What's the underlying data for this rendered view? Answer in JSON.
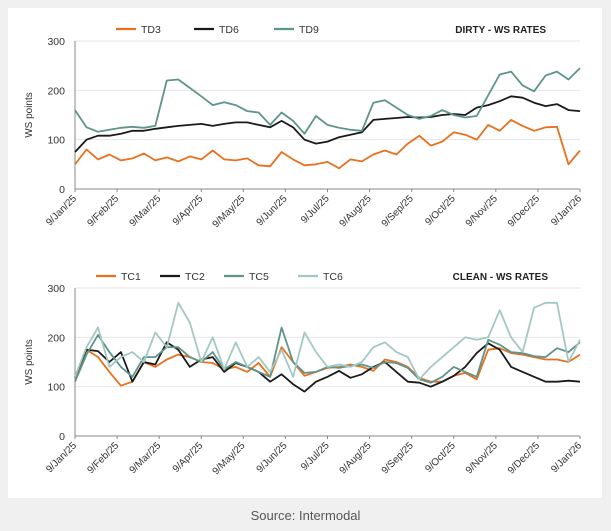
{
  "source": "Source: Intermodal",
  "chart_data": [
    {
      "type": "line",
      "title": "DIRTY - WS RATES",
      "ylabel": "WS points",
      "xlabel": "",
      "ylim": [
        0,
        300
      ],
      "yticks": [
        0,
        100,
        200,
        300
      ],
      "grid": true,
      "legend": "top-left",
      "xticks": [
        "9/Jan/25",
        "9/Feb/25",
        "9/Mar/25",
        "9/Apr/25",
        "9/May/25",
        "9/Jun/25",
        "9/Jul/25",
        "9/Aug/25",
        "9/Sep/25",
        "9/Oct/25",
        "9/Nov/25",
        "9/Dec/25",
        "9/Jan/26"
      ],
      "series": [
        {
          "name": "TD3",
          "color": "#E8701F",
          "values": [
            50,
            80,
            60,
            70,
            58,
            62,
            72,
            58,
            64,
            56,
            66,
            60,
            78,
            60,
            58,
            62,
            48,
            46,
            75,
            60,
            48,
            50,
            55,
            42,
            60,
            56,
            70,
            78,
            70,
            92,
            108,
            88,
            96,
            115,
            110,
            100,
            130,
            118,
            140,
            128,
            118,
            125,
            126,
            50,
            78
          ]
        },
        {
          "name": "TD6",
          "color": "#1A1A1A",
          "values": [
            75,
            100,
            108,
            108,
            112,
            118,
            118,
            122,
            125,
            128,
            130,
            132,
            128,
            132,
            135,
            135,
            130,
            125,
            138,
            125,
            100,
            92,
            96,
            105,
            110,
            115,
            140,
            142,
            144,
            146,
            145,
            146,
            150,
            152,
            150,
            165,
            170,
            178,
            188,
            185,
            175,
            168,
            172,
            160,
            158
          ]
        },
        {
          "name": "TD9",
          "color": "#5E948C",
          "values": [
            160,
            125,
            116,
            120,
            124,
            126,
            124,
            128,
            220,
            222,
            205,
            188,
            170,
            176,
            170,
            158,
            155,
            130,
            155,
            138,
            112,
            148,
            130,
            124,
            120,
            118,
            175,
            180,
            165,
            150,
            142,
            148,
            160,
            150,
            145,
            148,
            190,
            232,
            238,
            210,
            198,
            230,
            238,
            222,
            245
          ]
        }
      ]
    },
    {
      "type": "line",
      "title": "CLEAN - WS RATES",
      "ylabel": "WS points",
      "xlabel": "",
      "ylim": [
        0,
        300
      ],
      "yticks": [
        0,
        100,
        200,
        300
      ],
      "grid": true,
      "legend": "top-left",
      "xticks": [
        "9/Jan/25",
        "9/Feb/25",
        "9/Mar/25",
        "9/Apr/25",
        "9/May/25",
        "9/Jun/25",
        "9/Jul/25",
        "9/Aug/25",
        "9/Sep/25",
        "9/Oct/25",
        "9/Nov/25",
        "9/Dec/25",
        "9/Jan/26"
      ],
      "series": [
        {
          "name": "TC1",
          "color": "#E8701F",
          "values": [
            118,
            175,
            160,
            130,
            102,
            110,
            150,
            140,
            155,
            165,
            160,
            150,
            148,
            135,
            140,
            130,
            148,
            120,
            180,
            150,
            122,
            130,
            138,
            140,
            145,
            140,
            132,
            155,
            150,
            140,
            118,
            110,
            110,
            122,
            128,
            115,
            175,
            178,
            168,
            165,
            160,
            155,
            155,
            150,
            165
          ]
        },
        {
          "name": "TC2",
          "color": "#1A1A1A",
          "values": [
            120,
            175,
            172,
            150,
            170,
            110,
            150,
            145,
            190,
            175,
            140,
            155,
            160,
            130,
            148,
            140,
            130,
            110,
            125,
            105,
            90,
            110,
            120,
            132,
            118,
            125,
            140,
            150,
            130,
            110,
            108,
            100,
            110,
            122,
            140,
            168,
            188,
            175,
            140,
            130,
            120,
            110,
            110,
            112,
            110
          ]
        },
        {
          "name": "TC5",
          "color": "#5E948C",
          "values": [
            110,
            165,
            205,
            170,
            140,
            120,
            160,
            160,
            180,
            180,
            160,
            150,
            170,
            135,
            150,
            140,
            130,
            120,
            220,
            150,
            128,
            130,
            140,
            138,
            142,
            145,
            138,
            150,
            148,
            138,
            115,
            108,
            120,
            140,
            130,
            120,
            195,
            185,
            170,
            168,
            162,
            160,
            178,
            170,
            190
          ]
        },
        {
          "name": "TC6",
          "color": "#A3C8C4",
          "values": [
            120,
            180,
            220,
            140,
            160,
            170,
            150,
            210,
            180,
            270,
            230,
            150,
            200,
            135,
            190,
            140,
            160,
            130,
            175,
            120,
            210,
            170,
            140,
            145,
            140,
            150,
            180,
            190,
            170,
            160,
            115,
            140,
            160,
            180,
            200,
            195,
            200,
            255,
            200,
            170,
            260,
            270,
            270,
            150,
            195
          ]
        }
      ]
    }
  ]
}
